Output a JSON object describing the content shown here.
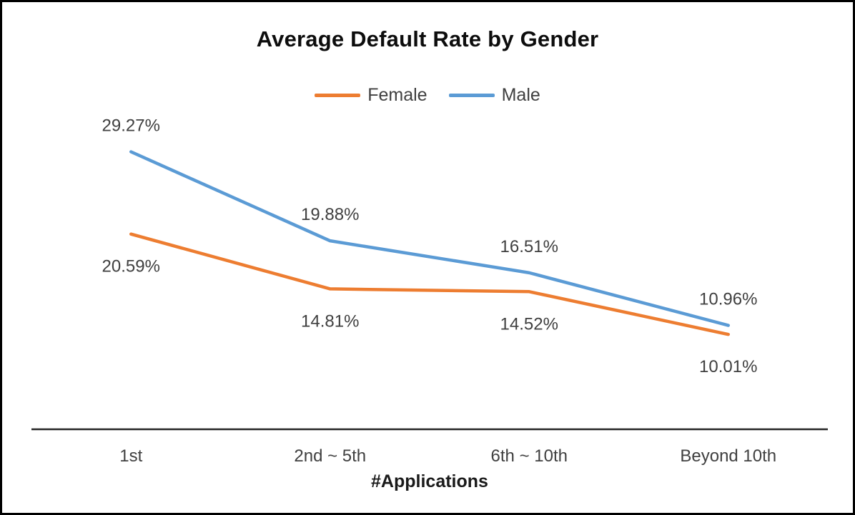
{
  "chart_data": {
    "type": "line",
    "title": "Average Default Rate by Gender",
    "xlabel": "#Applications",
    "ylabel": "",
    "categories": [
      "1st",
      "2nd ~ 5th",
      "6th ~ 10th",
      "Beyond 10th"
    ],
    "series": [
      {
        "name": "Female",
        "color": "#ED7D31",
        "values": [
          20.59,
          14.81,
          14.52,
          10.01
        ],
        "label_position": "below"
      },
      {
        "name": "Male",
        "color": "#5B9BD5",
        "values": [
          29.27,
          19.88,
          16.51,
          10.96
        ],
        "label_position": "above"
      }
    ],
    "data_labels": {
      "female": [
        "20.59%",
        "14.81%",
        "14.52%",
        "10.01%"
      ],
      "male": [
        "29.27%",
        "19.88%",
        "16.51%",
        "10.96%"
      ]
    },
    "ylim": [
      0,
      33
    ],
    "grid": false,
    "legend_position": "top",
    "axis_color": "#262626",
    "label_format": "0.00%"
  }
}
